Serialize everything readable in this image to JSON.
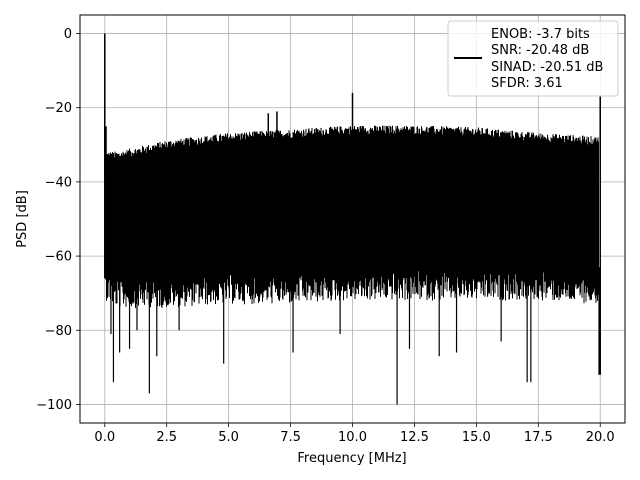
{
  "chart_data": {
    "type": "line",
    "xlabel": "Frequency [MHz]",
    "ylabel": "PSD [dB]",
    "xlim": [
      -1,
      21
    ],
    "ylim": [
      -105,
      5
    ],
    "xticks": [
      0,
      2.5,
      5,
      7.5,
      10,
      12.5,
      15,
      17.5,
      20
    ],
    "xtick_labels": [
      "0.0",
      "2.5",
      "5.0",
      "7.5",
      "10.0",
      "12.5",
      "15.0",
      "17.5",
      "20.0"
    ],
    "yticks": [
      0,
      -20,
      -40,
      -60,
      -80,
      -100
    ],
    "ytick_labels": [
      "0",
      "−20",
      "−40",
      "−60",
      "−80",
      "−100"
    ],
    "grid": true,
    "legend_position": "top-right",
    "series": [
      {
        "color": "#000000",
        "envelope": {
          "x": [
            0.05,
            0.5,
            2.5,
            5,
            7.5,
            10,
            12.5,
            15,
            17.5,
            19.95
          ],
          "upper": [
            -33,
            -33,
            -30,
            -28,
            -27,
            -26,
            -26,
            -26.5,
            -28,
            -29
          ],
          "lower": [
            -64,
            -66,
            -66,
            -65,
            -65,
            -64,
            -64,
            -64,
            -64,
            -65
          ]
        },
        "spurs": [
          {
            "x": 0.0,
            "y": 0.0
          },
          {
            "x": 0.05,
            "y": -25
          },
          {
            "x": 6.6,
            "y": -21.5
          },
          {
            "x": 6.95,
            "y": -21
          },
          {
            "x": 10.0,
            "y": -16
          },
          {
            "x": 20.0,
            "y": -17
          }
        ],
        "dips": [
          {
            "x": 0.25,
            "y": -81
          },
          {
            "x": 0.35,
            "y": -94
          },
          {
            "x": 0.6,
            "y": -86
          },
          {
            "x": 1.0,
            "y": -85
          },
          {
            "x": 1.3,
            "y": -80
          },
          {
            "x": 1.8,
            "y": -97
          },
          {
            "x": 2.1,
            "y": -87
          },
          {
            "x": 3.0,
            "y": -80
          },
          {
            "x": 4.8,
            "y": -89
          },
          {
            "x": 7.6,
            "y": -86
          },
          {
            "x": 9.5,
            "y": -81
          },
          {
            "x": 11.8,
            "y": -100
          },
          {
            "x": 12.3,
            "y": -85
          },
          {
            "x": 13.5,
            "y": -87
          },
          {
            "x": 14.2,
            "y": -86
          },
          {
            "x": 16.0,
            "y": -83
          },
          {
            "x": 17.05,
            "y": -94
          },
          {
            "x": 17.2,
            "y": -94
          },
          {
            "x": 19.95,
            "y": -92
          }
        ]
      }
    ],
    "legend": {
      "entries": [
        "ENOB: -3.7 bits",
        "SNR: -20.48 dB",
        "SINAD: -20.51 dB",
        "SFDR: 3.61"
      ]
    }
  }
}
